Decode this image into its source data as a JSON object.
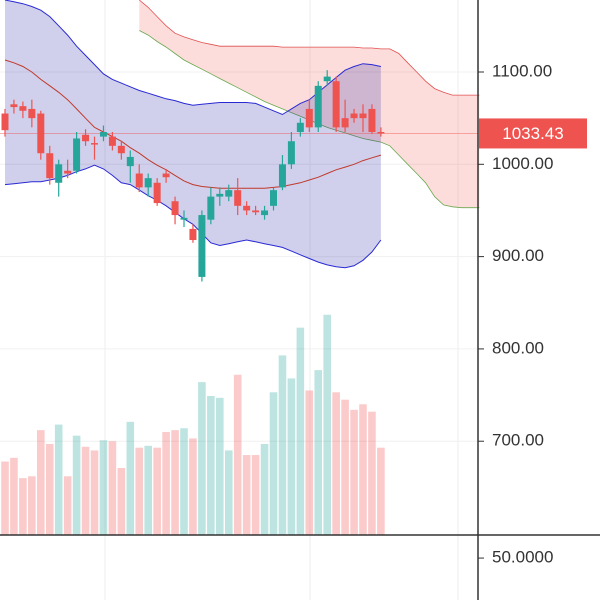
{
  "chart_data": {
    "type": "candlestick",
    "ylim": [
      598.4,
      1178
    ],
    "yticks": [
      {
        "value": 1100,
        "label": "1100.00"
      },
      {
        "value": 1000,
        "label": "1000.00"
      },
      {
        "value": 900,
        "label": "900.00"
      },
      {
        "value": 800,
        "label": "800.00"
      },
      {
        "value": 700,
        "label": "700.00"
      }
    ],
    "up_color": "#26a69a",
    "down_color": "#ef5350",
    "open": [
      1055,
      1065,
      1063,
      1060,
      1055,
      1012,
      980,
      993,
      993,
      1032,
      1023,
      1030,
      1030,
      1020,
      998,
      990,
      975,
      980,
      990,
      960,
      940,
      930,
      878,
      940,
      965,
      965,
      972,
      955,
      950,
      945,
      955,
      975,
      1000,
      1035,
      1060,
      1040,
      1090,
      1090,
      1050,
      1055,
      1055,
      1060,
      1035
    ],
    "high": [
      1060,
      1070,
      1068,
      1070,
      1058,
      1020,
      1005,
      1005,
      1035,
      1038,
      1030,
      1042,
      1035,
      1025,
      1015,
      1000,
      990,
      985,
      995,
      965,
      950,
      935,
      950,
      975,
      975,
      978,
      985,
      960,
      955,
      955,
      975,
      1010,
      1035,
      1050,
      1070,
      1090,
      1102,
      1095,
      1070,
      1060,
      1065,
      1065,
      1040
    ],
    "low": [
      1030,
      1055,
      1050,
      1040,
      1005,
      978,
      965,
      985,
      990,
      1020,
      1005,
      1025,
      1015,
      1005,
      980,
      970,
      965,
      955,
      980,
      935,
      932,
      915,
      873,
      935,
      955,
      960,
      945,
      945,
      945,
      940,
      950,
      972,
      995,
      1030,
      1035,
      1035,
      1085,
      1035,
      1035,
      1045,
      1035,
      1033,
      1030
    ],
    "close": [
      1037,
      1062,
      1058,
      1050,
      1012,
      985,
      1000,
      990,
      1028,
      1025,
      1022,
      1035,
      1020,
      1012,
      1008,
      975,
      985,
      958,
      986,
      945,
      942,
      918,
      945,
      965,
      968,
      972,
      955,
      950,
      948,
      950,
      972,
      1000,
      1025,
      1045,
      1040,
      1085,
      1095,
      1040,
      1040,
      1050,
      1050,
      1035,
      1033.43
    ],
    "volume": [
      678,
      682,
      660,
      662,
      712,
      697,
      718,
      662,
      706,
      694,
      690,
      701,
      700,
      671,
      721,
      693,
      695,
      693,
      710,
      712,
      714,
      703,
      764,
      749,
      747,
      690,
      772,
      685,
      685,
      697,
      753,
      793,
      768,
      823,
      755,
      777,
      837,
      753,
      745,
      734,
      740,
      732,
      693
    ],
    "bands": {
      "color": "#2a2ad4",
      "upper": [
        1178,
        1176,
        1174,
        1171,
        1167,
        1160,
        1150,
        1140,
        1128,
        1118,
        1108,
        1098,
        1092,
        1088,
        1084,
        1080,
        1077,
        1074,
        1071,
        1069,
        1066,
        1064,
        1065,
        1066,
        1067,
        1067,
        1067,
        1067,
        1066,
        1062,
        1058,
        1054,
        1060,
        1066,
        1070,
        1078,
        1086,
        1094,
        1102,
        1106,
        1109,
        1108,
        1106
      ],
      "lower": [
        978,
        979,
        980,
        981,
        981,
        983,
        985,
        988,
        992,
        995,
        999,
        995,
        988,
        980,
        978,
        972,
        966,
        961,
        955,
        948,
        941,
        935,
        925,
        915,
        912,
        914,
        916,
        918,
        916,
        914,
        912,
        910,
        906,
        902,
        898,
        894,
        891,
        889,
        888,
        890,
        896,
        905,
        918
      ]
    },
    "ma": {
      "color": "#c0392b",
      "values": [
        1113,
        1110,
        1106,
        1100,
        1092,
        1085,
        1078,
        1070,
        1060,
        1050,
        1040,
        1035,
        1030,
        1025,
        1018,
        1012,
        1005,
        999,
        994,
        988,
        982,
        978,
        976,
        975,
        974,
        974,
        974,
        974,
        974,
        974,
        975,
        976,
        978,
        980,
        983,
        986,
        990,
        994,
        997,
        1000,
        1004,
        1007,
        1010
      ]
    },
    "cloud": {
      "color_a": "#e05050",
      "color_b": "#6aa84f",
      "span_a": [
        null,
        null,
        null,
        null,
        null,
        null,
        null,
        null,
        null,
        null,
        null,
        null,
        null,
        null,
        null,
        1178,
        1170,
        1160,
        1150,
        1142,
        1138,
        1135,
        1132,
        1130,
        1128,
        1128,
        1128,
        1128,
        1128,
        1128,
        1128,
        1127,
        1127,
        1127,
        1127,
        1127,
        1127,
        1127,
        1127,
        1127,
        1126,
        1126,
        1125,
        1125,
        1120,
        1110,
        1100,
        1090,
        1082,
        1078,
        1075,
        1075,
        1075,
        1075
      ],
      "span_b": [
        null,
        null,
        null,
        null,
        null,
        null,
        null,
        null,
        null,
        null,
        null,
        null,
        null,
        null,
        null,
        1145,
        1140,
        1133,
        1127,
        1120,
        1113,
        1108,
        1103,
        1098,
        1093,
        1088,
        1083,
        1078,
        1073,
        1068,
        1064,
        1060,
        1056,
        1052,
        1048,
        1044,
        1040,
        1037,
        1034,
        1031,
        1028,
        1026,
        1024,
        1020,
        1010,
        1000,
        990,
        980,
        965,
        956,
        954,
        953,
        953,
        953
      ]
    },
    "last_price": 1033.43,
    "lower_pane": {
      "ylim": [
        42.4,
        54
      ],
      "yticks": [
        {
          "value": 50,
          "label": "50.0000"
        }
      ]
    }
  }
}
